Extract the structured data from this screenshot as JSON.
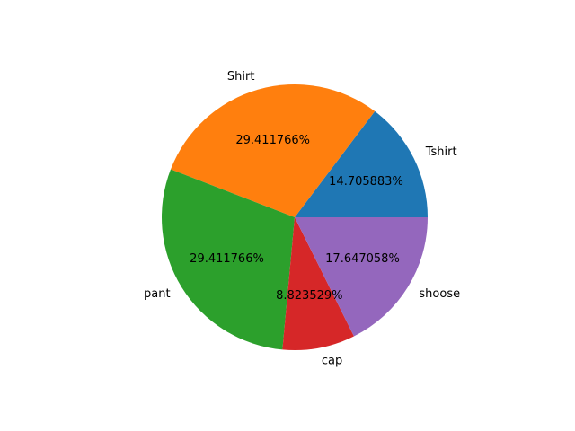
{
  "chart_data": {
    "type": "pie",
    "title": "",
    "categories": [
      "Tshirt",
      "Shirt",
      "pant",
      "cap",
      "shoose"
    ],
    "values": [
      5,
      10,
      10,
      3,
      6
    ],
    "percent_labels": [
      "14.705883%",
      "29.411766%",
      "29.411766%",
      "8.823529%",
      "17.647058%"
    ],
    "colors": [
      "#1f77b4",
      "#ff7f0e",
      "#2ca02c",
      "#d62728",
      "#9467bd"
    ],
    "start_angle_deg": 0,
    "direction": "counterclockwise"
  }
}
